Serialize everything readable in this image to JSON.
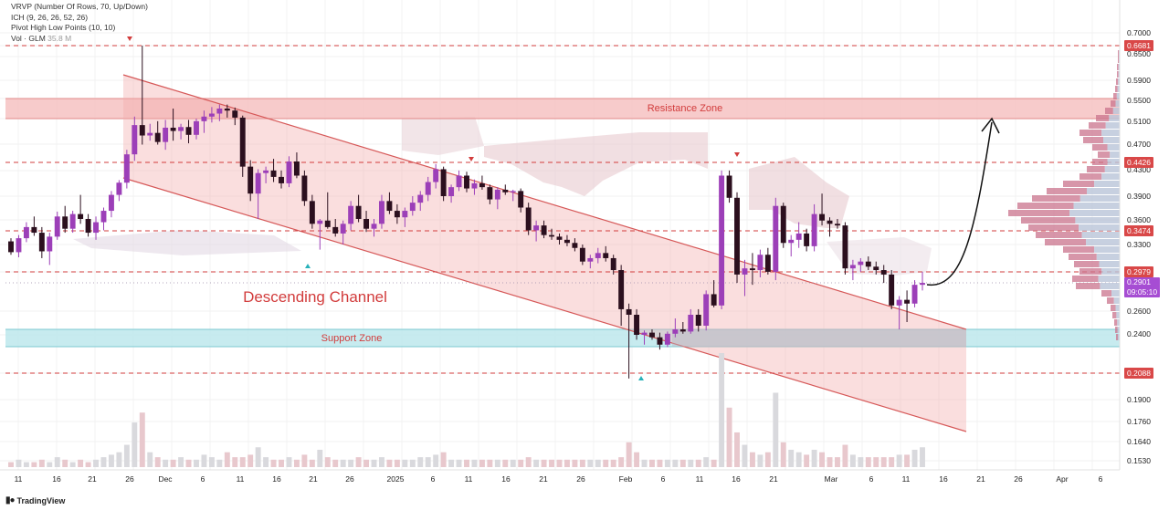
{
  "legend": {
    "vrvp": "VRVP (Number Of Rows, 70, Up/Down)",
    "ichimoku": "ICH (9, 26, 26, 52, 26)",
    "pivot": "Pivot High Low Points (10, 10)",
    "volume_label": "Vol · GLM",
    "volume_value": "35.8 M"
  },
  "branding": {
    "logo": "TradingView"
  },
  "annotations": {
    "resistance": "Resistance Zone",
    "support": "Support Zone",
    "channel": "Descending Channel"
  },
  "price_axis": {
    "ticks": [
      "0.7000",
      "0.6500",
      "0.5900",
      "0.5500",
      "0.5100",
      "0.4700",
      "0.4300",
      "0.3900",
      "0.3600",
      "0.3300",
      "0.2600",
      "0.2400",
      "0.1900",
      "0.1760",
      "0.1640",
      "0.1530"
    ],
    "levels": [
      "0.6681",
      "0.4426",
      "0.3474",
      "0.2979",
      "0.2088"
    ],
    "current_price": "0.2901",
    "countdown": "09:05:10"
  },
  "time_axis": {
    "labels": [
      "11",
      "16",
      "21",
      "26",
      "Dec",
      "6",
      "11",
      "16",
      "21",
      "26",
      "2025",
      "6",
      "11",
      "16",
      "21",
      "26",
      "Feb",
      "6",
      "11",
      "16",
      "21",
      "Mar",
      "6",
      "11",
      "16",
      "21",
      "26",
      "Apr",
      "6"
    ]
  },
  "chart_data": {
    "type": "candlestick",
    "symbol": "GLM",
    "levels": [
      0.6681,
      0.4426,
      0.3474,
      0.2979,
      0.2088
    ],
    "zones": [
      {
        "name": "Resistance Zone",
        "low": 0.51,
        "high": 0.55
      },
      {
        "name": "Support Zone",
        "low": 0.24,
        "high": 0.25
      }
    ],
    "current_price": 0.2901,
    "candles": [
      [
        0.334,
        0.338,
        0.318,
        0.321
      ],
      [
        0.321,
        0.342,
        0.315,
        0.338
      ],
      [
        0.338,
        0.358,
        0.333,
        0.352
      ],
      [
        0.352,
        0.365,
        0.341,
        0.345
      ],
      [
        0.345,
        0.352,
        0.314,
        0.322
      ],
      [
        0.322,
        0.345,
        0.306,
        0.34
      ],
      [
        0.34,
        0.371,
        0.336,
        0.365
      ],
      [
        0.365,
        0.378,
        0.345,
        0.35
      ],
      [
        0.35,
        0.372,
        0.345,
        0.368
      ],
      [
        0.368,
        0.392,
        0.356,
        0.362
      ],
      [
        0.362,
        0.368,
        0.34,
        0.345
      ],
      [
        0.345,
        0.365,
        0.336,
        0.358
      ],
      [
        0.358,
        0.376,
        0.348,
        0.372
      ],
      [
        0.372,
        0.398,
        0.364,
        0.392
      ],
      [
        0.392,
        0.415,
        0.384,
        0.411
      ],
      [
        0.411,
        0.462,
        0.402,
        0.455
      ],
      [
        0.455,
        0.514,
        0.445,
        0.5
      ],
      [
        0.5,
        0.668,
        0.47,
        0.484
      ],
      [
        0.484,
        0.502,
        0.476,
        0.488
      ],
      [
        0.488,
        0.506,
        0.47,
        0.474
      ],
      [
        0.474,
        0.508,
        0.462,
        0.496
      ],
      [
        0.496,
        0.53,
        0.476,
        0.491
      ],
      [
        0.491,
        0.502,
        0.478,
        0.497
      ],
      [
        0.497,
        0.508,
        0.472,
        0.485
      ],
      [
        0.485,
        0.51,
        0.478,
        0.506
      ],
      [
        0.506,
        0.526,
        0.488,
        0.514
      ],
      [
        0.514,
        0.533,
        0.504,
        0.52
      ],
      [
        0.52,
        0.538,
        0.506,
        0.53
      ],
      [
        0.53,
        0.538,
        0.512,
        0.526
      ],
      [
        0.526,
        0.532,
        0.5,
        0.512
      ],
      [
        0.512,
        0.516,
        0.42,
        0.436
      ],
      [
        0.436,
        0.446,
        0.384,
        0.394
      ],
      [
        0.394,
        0.432,
        0.362,
        0.426
      ],
      [
        0.426,
        0.436,
        0.41,
        0.43
      ],
      [
        0.43,
        0.448,
        0.412,
        0.42
      ],
      [
        0.42,
        0.43,
        0.402,
        0.41
      ],
      [
        0.41,
        0.452,
        0.404,
        0.444
      ],
      [
        0.444,
        0.458,
        0.418,
        0.422
      ],
      [
        0.422,
        0.43,
        0.378,
        0.384
      ],
      [
        0.384,
        0.392,
        0.35,
        0.356
      ],
      [
        0.356,
        0.362,
        0.324,
        0.36
      ],
      [
        0.36,
        0.396,
        0.35,
        0.352
      ],
      [
        0.352,
        0.362,
        0.34,
        0.344
      ],
      [
        0.344,
        0.36,
        0.33,
        0.356
      ],
      [
        0.356,
        0.384,
        0.348,
        0.378
      ],
      [
        0.378,
        0.392,
        0.358,
        0.362
      ],
      [
        0.362,
        0.372,
        0.346,
        0.35
      ],
      [
        0.35,
        0.362,
        0.34,
        0.356
      ],
      [
        0.356,
        0.392,
        0.35,
        0.384
      ],
      [
        0.384,
        0.396,
        0.368,
        0.372
      ],
      [
        0.372,
        0.38,
        0.356,
        0.364
      ],
      [
        0.364,
        0.376,
        0.352,
        0.372
      ],
      [
        0.372,
        0.39,
        0.366,
        0.382
      ],
      [
        0.382,
        0.398,
        0.372,
        0.392
      ],
      [
        0.392,
        0.42,
        0.384,
        0.412
      ],
      [
        0.412,
        0.44,
        0.402,
        0.432
      ],
      [
        0.432,
        0.436,
        0.384,
        0.39
      ],
      [
        0.39,
        0.408,
        0.382,
        0.404
      ],
      [
        0.404,
        0.43,
        0.398,
        0.422
      ],
      [
        0.422,
        0.428,
        0.396,
        0.402
      ],
      [
        0.402,
        0.416,
        0.392,
        0.41
      ],
      [
        0.41,
        0.422,
        0.4,
        0.404
      ],
      [
        0.404,
        0.408,
        0.38,
        0.386
      ],
      [
        0.386,
        0.404,
        0.374,
        0.4
      ],
      [
        0.4,
        0.408,
        0.392,
        0.396
      ],
      [
        0.396,
        0.4,
        0.384,
        0.398
      ],
      [
        0.398,
        0.402,
        0.37,
        0.376
      ],
      [
        0.376,
        0.382,
        0.342,
        0.348
      ],
      [
        0.348,
        0.36,
        0.334,
        0.354
      ],
      [
        0.354,
        0.36,
        0.338,
        0.342
      ],
      [
        0.342,
        0.35,
        0.336,
        0.34
      ],
      [
        0.34,
        0.344,
        0.33,
        0.336
      ],
      [
        0.336,
        0.342,
        0.328,
        0.332
      ],
      [
        0.332,
        0.338,
        0.322,
        0.326
      ],
      [
        0.326,
        0.33,
        0.306,
        0.31
      ],
      [
        0.31,
        0.318,
        0.302,
        0.314
      ],
      [
        0.314,
        0.326,
        0.308,
        0.32
      ],
      [
        0.32,
        0.328,
        0.31,
        0.314
      ],
      [
        0.314,
        0.318,
        0.296,
        0.3
      ],
      [
        0.3,
        0.306,
        0.252,
        0.262
      ],
      [
        0.262,
        0.268,
        0.205,
        0.258
      ],
      [
        0.258,
        0.262,
        0.236,
        0.24
      ],
      [
        0.24,
        0.248,
        0.232,
        0.244
      ],
      [
        0.244,
        0.25,
        0.236,
        0.238
      ],
      [
        0.238,
        0.244,
        0.228,
        0.232
      ],
      [
        0.232,
        0.246,
        0.23,
        0.242
      ],
      [
        0.242,
        0.256,
        0.238,
        0.25
      ],
      [
        0.25,
        0.254,
        0.242,
        0.246
      ],
      [
        0.246,
        0.262,
        0.242,
        0.258
      ],
      [
        0.258,
        0.262,
        0.246,
        0.252
      ],
      [
        0.252,
        0.282,
        0.248,
        0.278
      ],
      [
        0.278,
        0.292,
        0.264,
        0.266
      ],
      [
        0.266,
        0.43,
        0.262,
        0.422
      ],
      [
        0.422,
        0.43,
        0.382,
        0.388
      ],
      [
        0.388,
        0.396,
        0.29,
        0.296
      ],
      [
        0.296,
        0.312,
        0.276,
        0.302
      ],
      [
        0.302,
        0.32,
        0.288,
        0.3
      ],
      [
        0.3,
        0.324,
        0.294,
        0.318
      ],
      [
        0.318,
        0.326,
        0.296,
        0.298
      ],
      [
        0.298,
        0.388,
        0.292,
        0.378
      ],
      [
        0.378,
        0.382,
        0.326,
        0.332
      ],
      [
        0.332,
        0.342,
        0.316,
        0.336
      ],
      [
        0.336,
        0.358,
        0.326,
        0.344
      ],
      [
        0.344,
        0.35,
        0.322,
        0.328
      ],
      [
        0.328,
        0.38,
        0.322,
        0.368
      ],
      [
        0.368,
        0.394,
        0.354,
        0.36
      ],
      [
        0.36,
        0.364,
        0.34,
        0.356
      ],
      [
        0.356,
        0.362,
        0.35,
        0.354
      ],
      [
        0.354,
        0.358,
        0.296,
        0.302
      ],
      [
        0.302,
        0.312,
        0.292,
        0.306
      ],
      [
        0.306,
        0.314,
        0.298,
        0.31
      ],
      [
        0.31,
        0.316,
        0.3,
        0.304
      ],
      [
        0.304,
        0.31,
        0.296,
        0.3
      ],
      [
        0.3,
        0.306,
        0.29,
        0.296
      ],
      [
        0.296,
        0.3,
        0.262,
        0.266
      ],
      [
        0.266,
        0.276,
        0.25,
        0.272
      ],
      [
        0.272,
        0.282,
        0.254,
        0.268
      ],
      [
        0.268,
        0.292,
        0.264,
        0.288
      ],
      [
        0.288,
        0.298,
        0.282,
        0.29
      ]
    ],
    "volume": [
      2,
      3,
      2,
      2,
      3,
      2,
      4,
      3,
      2,
      3,
      2,
      3,
      4,
      5,
      6,
      9,
      18,
      22,
      6,
      4,
      3,
      3,
      4,
      3,
      3,
      5,
      4,
      3,
      6,
      4,
      4,
      5,
      8,
      4,
      3,
      3,
      4,
      3,
      5,
      3,
      7,
      4,
      3,
      3,
      3,
      4,
      3,
      3,
      4,
      3,
      3,
      3,
      3,
      4,
      4,
      5,
      6,
      3,
      3,
      3,
      3,
      3,
      3,
      3,
      3,
      3,
      3,
      4,
      3,
      3,
      3,
      3,
      3,
      3,
      3,
      3,
      3,
      3,
      3,
      4,
      10,
      6,
      3,
      3,
      3,
      3,
      3,
      3,
      3,
      3,
      4,
      3,
      46,
      24,
      14,
      9,
      6,
      5,
      6,
      30,
      10,
      7,
      6,
      5,
      7,
      6,
      4,
      4,
      9,
      5,
      4,
      4,
      4,
      4,
      4,
      5,
      5,
      7,
      8
    ]
  }
}
